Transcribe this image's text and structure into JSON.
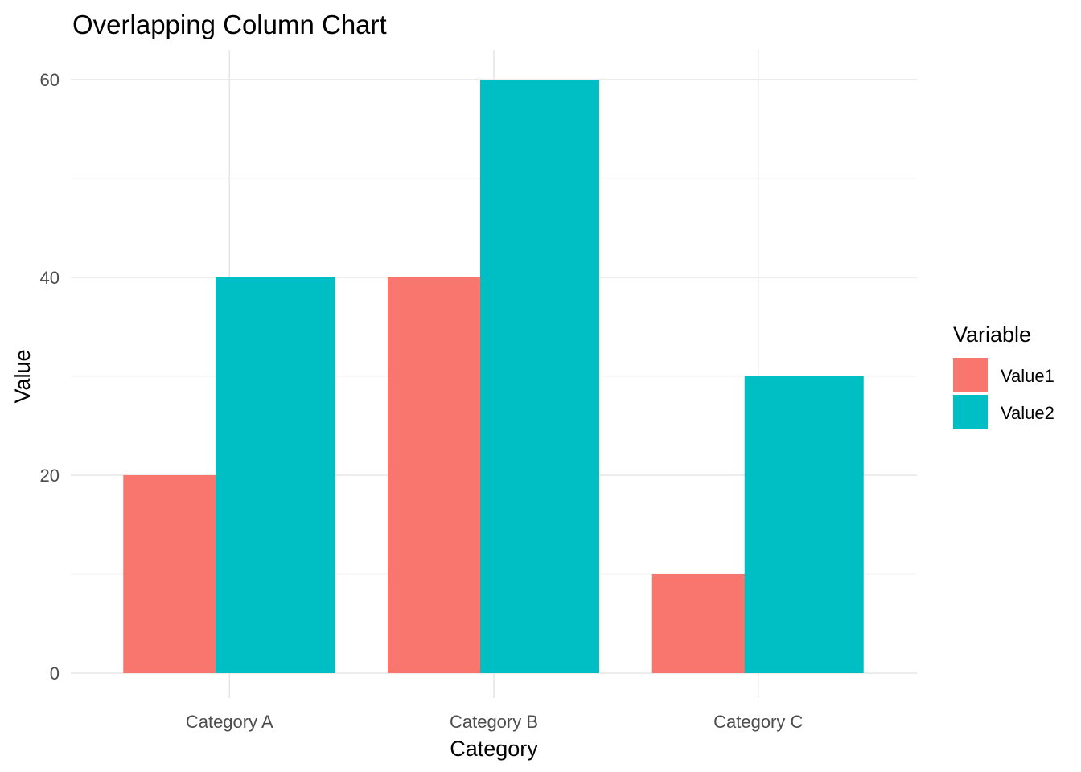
{
  "chart_data": {
    "type": "bar",
    "title": "Overlapping Column Chart",
    "xlabel": "Category",
    "ylabel": "Value",
    "categories": [
      "Category A",
      "Category B",
      "Category C"
    ],
    "series": [
      {
        "name": "Value1",
        "values": [
          20,
          40,
          10
        ],
        "color": "#F8766D"
      },
      {
        "name": "Value2",
        "values": [
          40,
          60,
          30
        ],
        "color": "#00BFC4"
      }
    ],
    "ylim": [
      0,
      63
    ],
    "yticks": [
      0,
      20,
      40,
      60
    ],
    "grid": true,
    "legend": {
      "title": "Variable",
      "placement": "right"
    }
  }
}
